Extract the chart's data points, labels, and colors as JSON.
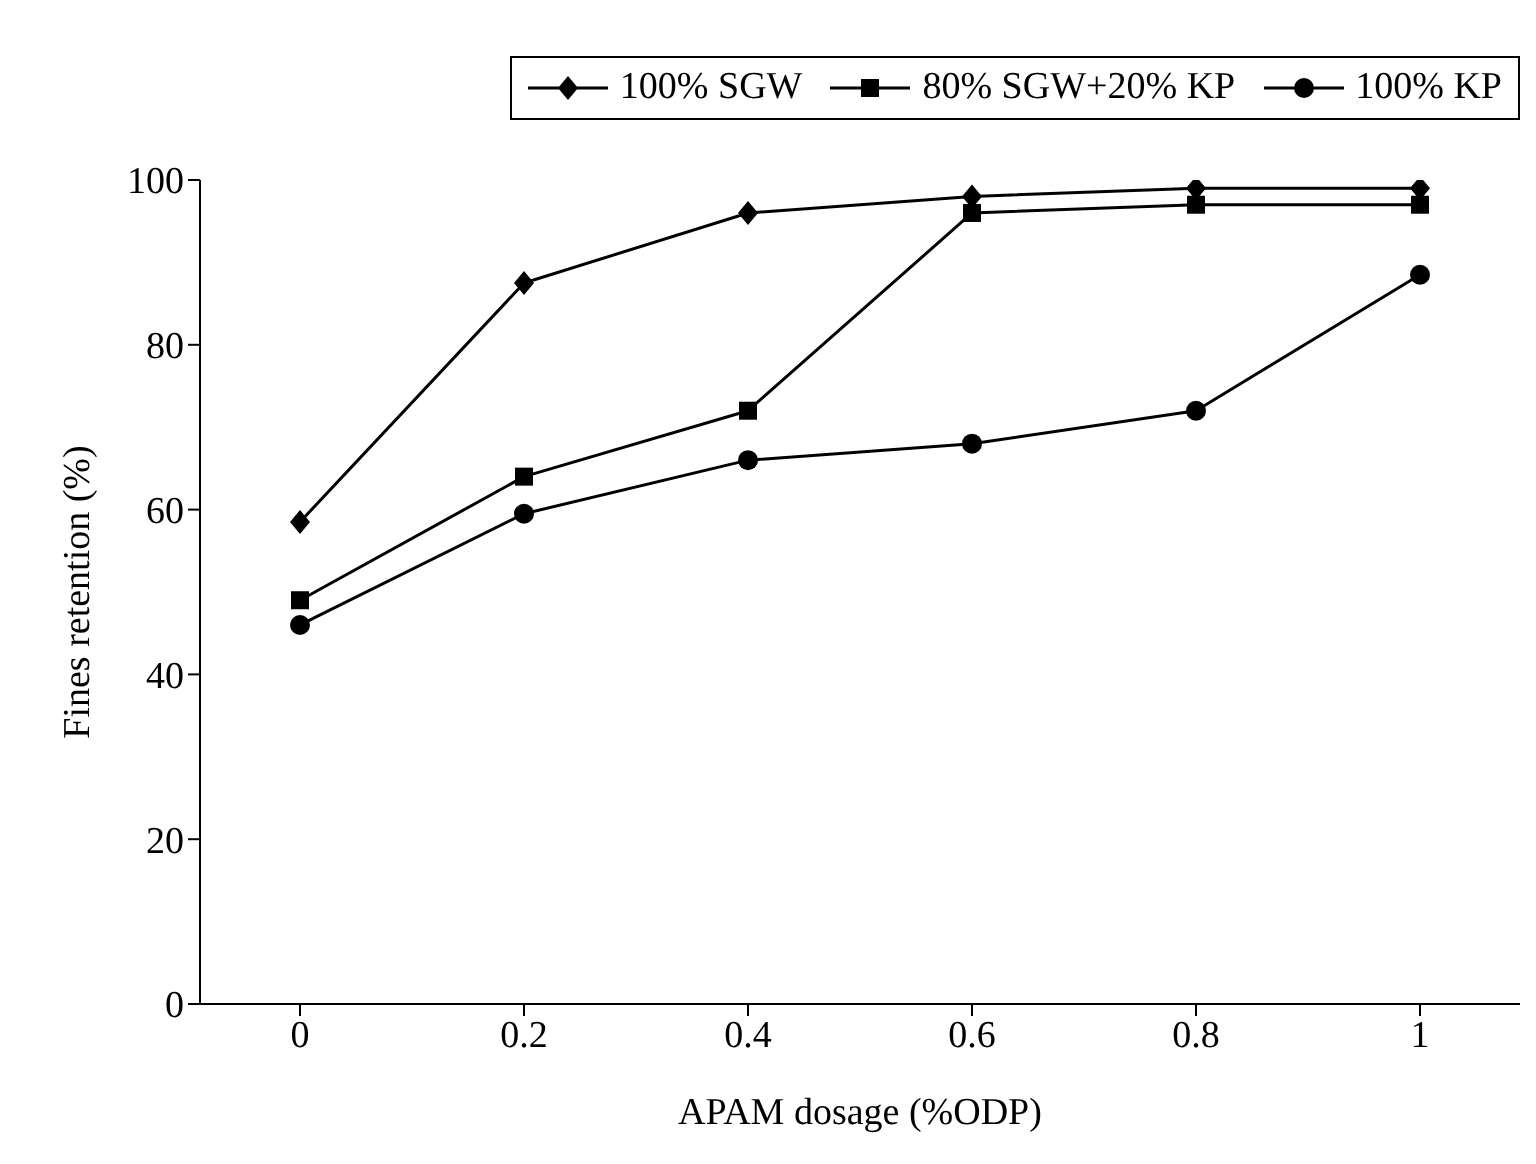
{
  "chart_data": {
    "type": "line",
    "xlabel": "APAM dosage (%ODP)",
    "ylabel": "Fines retention (%)",
    "categories": [
      "0",
      "0.2",
      "0.4",
      "0.6",
      "0.8",
      "1"
    ],
    "series": [
      {
        "name": "100% SGW",
        "color": "#000000",
        "marker": "diamond",
        "values": [
          58.5,
          87.5,
          96,
          98,
          99,
          99
        ]
      },
      {
        "name": "80% SGW+20% KP",
        "color": "#000000",
        "marker": "square",
        "values": [
          49,
          64,
          72,
          96,
          97,
          97
        ]
      },
      {
        "name": "100% KP",
        "color": "#000000",
        "marker": "circle",
        "values": [
          46,
          59.5,
          66,
          68,
          72,
          88.5
        ]
      }
    ],
    "ylim": [
      0,
      100
    ],
    "yticks": [
      0,
      20,
      40,
      60,
      80,
      100
    ],
    "grid": false,
    "legend": "top right",
    "line_style": "solid"
  }
}
